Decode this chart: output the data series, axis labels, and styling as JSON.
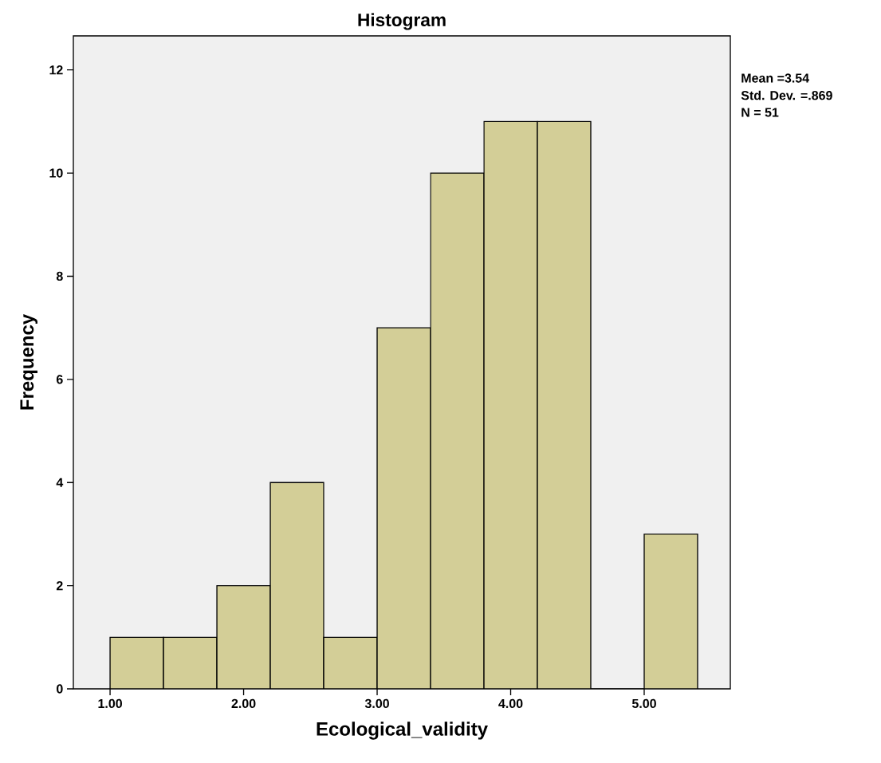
{
  "chart_data": {
    "type": "histogram",
    "title": "Histogram",
    "xlabel": "Ecological_validity",
    "ylabel": "Frequency",
    "bins": [
      1.0,
      1.4,
      1.8,
      2.2,
      2.6,
      3.0,
      3.4,
      3.8,
      4.2,
      4.6,
      5.0,
      5.4
    ],
    "values": [
      1,
      1,
      2,
      4,
      1,
      7,
      10,
      11,
      11,
      0,
      3
    ],
    "color": "#d3ce97",
    "xlim": [
      0.725,
      5.645
    ],
    "ylim": [
      0,
      12.66
    ],
    "xticks": [
      {
        "value": 1,
        "label": "1.00"
      },
      {
        "value": 2,
        "label": "2.00"
      },
      {
        "value": 3,
        "label": "3.00"
      },
      {
        "value": 4,
        "label": "4.00"
      },
      {
        "value": 5,
        "label": "5.00"
      }
    ],
    "yticks": [
      0,
      2,
      4,
      6,
      8,
      10,
      12
    ],
    "grid": false,
    "annotations": [
      "Mean =3.54",
      "Std. Dev. =.869",
      "N = 51"
    ]
  }
}
